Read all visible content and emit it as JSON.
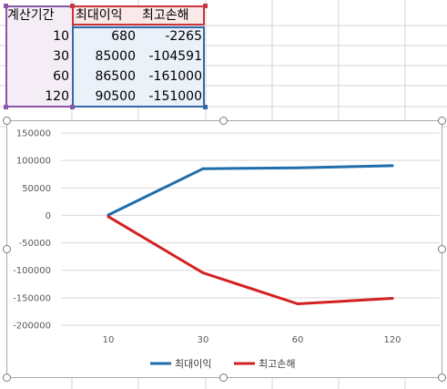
{
  "sheet": {
    "headers": [
      "계산기간",
      "최대이익",
      "최고손해"
    ],
    "rows": [
      [
        "10",
        "680",
        "-2265"
      ],
      [
        "30",
        "85000",
        "-104591"
      ],
      [
        "60",
        "86500",
        "-161000"
      ],
      [
        "120",
        "90500",
        "-151000"
      ]
    ]
  },
  "colors": {
    "series1": "#1f6eab",
    "series2": "#d42020",
    "sel_a": "#8a56a8",
    "sel_b": "#c8353c",
    "sel_c": "#3569a6"
  },
  "chart_data": {
    "type": "line",
    "categories": [
      "10",
      "30",
      "60",
      "120"
    ],
    "series": [
      {
        "name": "최대이익",
        "values": [
          680,
          85000,
          86500,
          90500
        ]
      },
      {
        "name": "최고손해",
        "values": [
          -2265,
          -104591,
          -161000,
          -151000
        ]
      }
    ],
    "y_ticks": [
      "150000",
      "100000",
      "50000",
      "0",
      "-50000",
      "-100000",
      "-150000",
      "-200000"
    ],
    "ylim": [
      -200000,
      150000
    ],
    "grid": true,
    "legend": "bottom"
  }
}
